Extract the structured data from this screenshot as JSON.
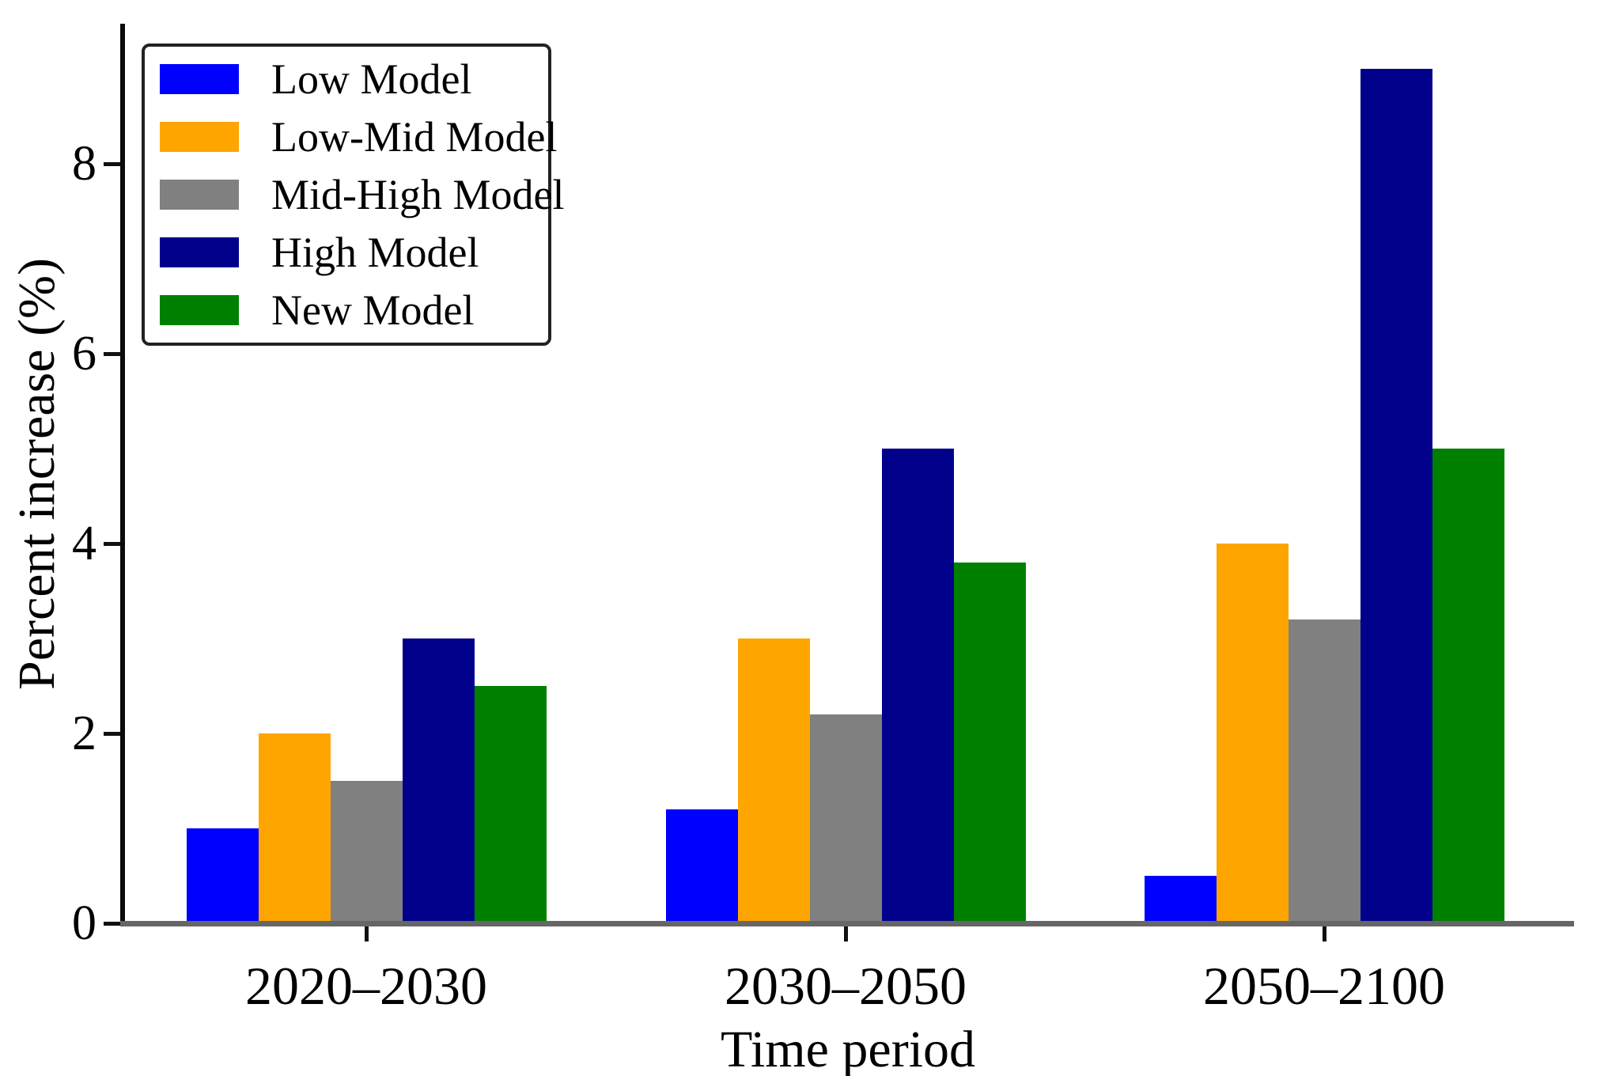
{
  "chart_data": {
    "type": "bar",
    "title": "",
    "xlabel": "Time period",
    "ylabel": "Percent increase (%)",
    "categories": [
      "2020–2030",
      "2030–2050",
      "2050–2100"
    ],
    "series": [
      {
        "name": "Low Model",
        "color": "#0000FF",
        "values": [
          1.0,
          1.2,
          0.5
        ]
      },
      {
        "name": "Low-Mid Model",
        "color": "#FFA500",
        "values": [
          2.0,
          3.0,
          4.0
        ]
      },
      {
        "name": "Mid-High Model",
        "color": "#808080",
        "values": [
          1.5,
          2.2,
          3.2
        ]
      },
      {
        "name": "High Model",
        "color": "#00008B",
        "values": [
          3.0,
          5.0,
          9.0
        ]
      },
      {
        "name": "New Model",
        "color": "#008000",
        "values": [
          2.5,
          3.8,
          5.0
        ]
      }
    ],
    "yticks": [
      0,
      2,
      4,
      6,
      8
    ],
    "ylim": [
      0,
      9.5
    ],
    "grid": false,
    "legend_position": "upper left",
    "spine_colors": {
      "left": "#0a0a0a",
      "bottom": "#666666"
    }
  }
}
